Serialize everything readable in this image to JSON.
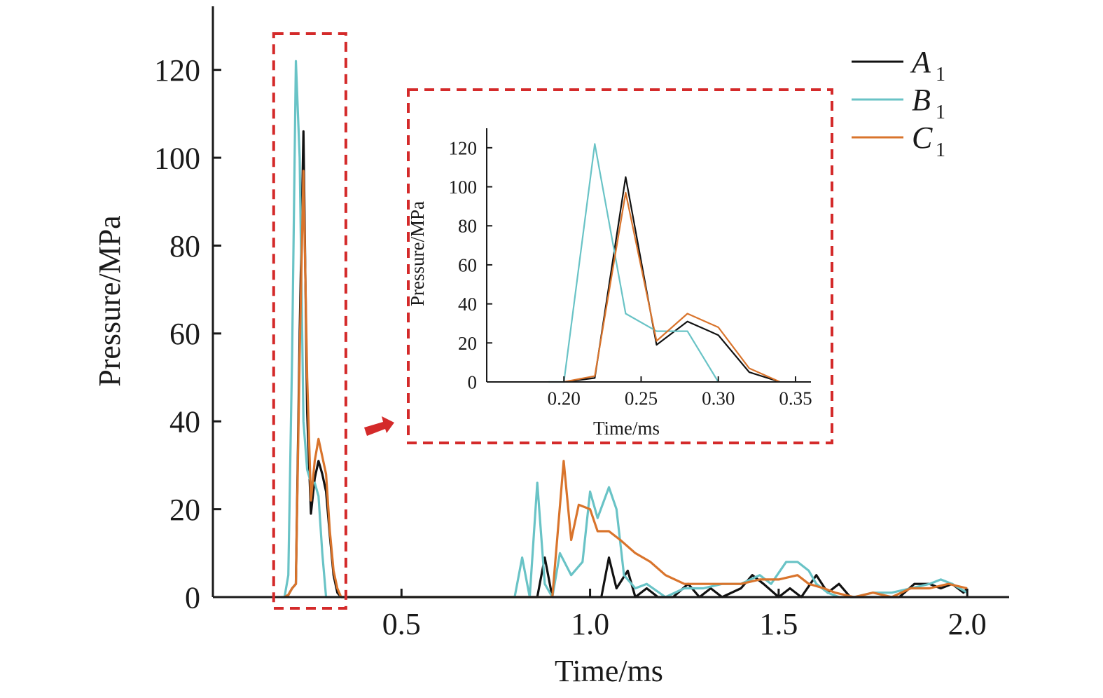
{
  "colors": {
    "A1": "#111111",
    "B1": "#69c3c6",
    "C1": "#d9742c",
    "callout": "#d42a2a",
    "axis": "#1a1a1a"
  },
  "chart_data": [
    {
      "id": "main",
      "type": "line",
      "xlabel": "Time/ms",
      "ylabel": "Pressure/MPa",
      "xlim": [
        0.0,
        2.1
      ],
      "ylim": [
        0,
        130
      ],
      "xticks": [
        0.5,
        1.0,
        1.5,
        2.0
      ],
      "xtick_labels": [
        "0.5",
        "1.0",
        "1.5",
        "2.0"
      ],
      "yticks": [
        0,
        20,
        40,
        60,
        80,
        100,
        120
      ],
      "ytick_labels": [
        "0",
        "20",
        "40",
        "60",
        "80",
        "100",
        "120"
      ],
      "grid": false,
      "legend": "top-right",
      "series": [
        {
          "name": "A",
          "subscript": "1",
          "color_key": "A1",
          "points": [
            [
              0.19,
              0
            ],
            [
              0.2,
              0.5
            ],
            [
              0.21,
              2
            ],
            [
              0.22,
              3
            ],
            [
              0.23,
              60
            ],
            [
              0.24,
              106
            ],
            [
              0.25,
              42
            ],
            [
              0.26,
              19
            ],
            [
              0.27,
              27
            ],
            [
              0.28,
              31
            ],
            [
              0.29,
              28
            ],
            [
              0.3,
              24
            ],
            [
              0.31,
              14
            ],
            [
              0.32,
              5
            ],
            [
              0.33,
              1
            ],
            [
              0.34,
              0
            ],
            [
              0.8,
              0
            ],
            [
              0.83,
              0
            ],
            [
              0.86,
              0
            ],
            [
              0.88,
              9
            ],
            [
              0.9,
              0
            ],
            [
              0.92,
              0
            ],
            [
              0.95,
              0
            ],
            [
              1.0,
              0
            ],
            [
              1.03,
              0
            ],
            [
              1.05,
              9
            ],
            [
              1.07,
              2
            ],
            [
              1.1,
              6
            ],
            [
              1.12,
              0
            ],
            [
              1.15,
              2
            ],
            [
              1.18,
              0
            ],
            [
              1.22,
              0
            ],
            [
              1.26,
              3
            ],
            [
              1.29,
              0
            ],
            [
              1.32,
              2
            ],
            [
              1.35,
              0
            ],
            [
              1.4,
              2
            ],
            [
              1.43,
              5
            ],
            [
              1.46,
              3
            ],
            [
              1.5,
              0
            ],
            [
              1.53,
              2
            ],
            [
              1.56,
              0
            ],
            [
              1.6,
              5
            ],
            [
              1.63,
              1
            ],
            [
              1.66,
              3
            ],
            [
              1.69,
              0
            ],
            [
              1.72,
              0
            ],
            [
              1.78,
              0
            ],
            [
              1.82,
              0
            ],
            [
              1.86,
              3
            ],
            [
              1.9,
              3
            ],
            [
              1.93,
              2
            ],
            [
              1.96,
              3
            ],
            [
              1.99,
              1
            ],
            [
              2.0,
              2
            ]
          ]
        },
        {
          "name": "B",
          "subscript": "1",
          "color_key": "B1",
          "points": [
            [
              0.18,
              0
            ],
            [
              0.19,
              0
            ],
            [
              0.2,
              5
            ],
            [
              0.21,
              55
            ],
            [
              0.22,
              122
            ],
            [
              0.23,
              100
            ],
            [
              0.24,
              40
            ],
            [
              0.25,
              29
            ],
            [
              0.26,
              26
            ],
            [
              0.27,
              26
            ],
            [
              0.28,
              23
            ],
            [
              0.29,
              10
            ],
            [
              0.3,
              0
            ],
            [
              0.8,
              0
            ],
            [
              0.82,
              9
            ],
            [
              0.84,
              0
            ],
            [
              0.86,
              26
            ],
            [
              0.88,
              3
            ],
            [
              0.9,
              0
            ],
            [
              0.92,
              10
            ],
            [
              0.95,
              5
            ],
            [
              0.98,
              8
            ],
            [
              1.0,
              24
            ],
            [
              1.02,
              18
            ],
            [
              1.05,
              25
            ],
            [
              1.07,
              20
            ],
            [
              1.09,
              5
            ],
            [
              1.12,
              2
            ],
            [
              1.15,
              3
            ],
            [
              1.2,
              0
            ],
            [
              1.25,
              2
            ],
            [
              1.3,
              2
            ],
            [
              1.35,
              3
            ],
            [
              1.4,
              3
            ],
            [
              1.45,
              5
            ],
            [
              1.48,
              3
            ],
            [
              1.52,
              8
            ],
            [
              1.55,
              8
            ],
            [
              1.58,
              6
            ],
            [
              1.6,
              3
            ],
            [
              1.63,
              1
            ],
            [
              1.66,
              0
            ],
            [
              1.7,
              0
            ],
            [
              1.75,
              1
            ],
            [
              1.8,
              1
            ],
            [
              1.85,
              2
            ],
            [
              1.9,
              3
            ],
            [
              1.93,
              4
            ],
            [
              1.96,
              3
            ],
            [
              2.0,
              1
            ]
          ]
        },
        {
          "name": "C",
          "subscript": "1",
          "color_key": "C1",
          "points": [
            [
              0.19,
              0
            ],
            [
              0.2,
              0.5
            ],
            [
              0.21,
              2
            ],
            [
              0.22,
              3
            ],
            [
              0.23,
              55
            ],
            [
              0.24,
              97
            ],
            [
              0.25,
              50
            ],
            [
              0.26,
              22
            ],
            [
              0.27,
              31
            ],
            [
              0.28,
              36
            ],
            [
              0.29,
              32
            ],
            [
              0.3,
              28
            ],
            [
              0.31,
              15
            ],
            [
              0.32,
              6
            ],
            [
              0.33,
              2
            ],
            [
              0.34,
              0
            ],
            [
              0.9,
              0
            ],
            [
              0.93,
              31
            ],
            [
              0.95,
              13
            ],
            [
              0.97,
              21
            ],
            [
              1.0,
              20
            ],
            [
              1.02,
              15
            ],
            [
              1.05,
              15
            ],
            [
              1.08,
              13
            ],
            [
              1.12,
              10
            ],
            [
              1.16,
              8
            ],
            [
              1.2,
              5
            ],
            [
              1.25,
              3
            ],
            [
              1.3,
              3
            ],
            [
              1.35,
              3
            ],
            [
              1.4,
              3
            ],
            [
              1.45,
              4
            ],
            [
              1.5,
              4
            ],
            [
              1.55,
              5
            ],
            [
              1.58,
              3
            ],
            [
              1.62,
              2
            ],
            [
              1.65,
              1
            ],
            [
              1.7,
              0
            ],
            [
              1.75,
              1
            ],
            [
              1.8,
              0
            ],
            [
              1.85,
              2
            ],
            [
              1.9,
              2
            ],
            [
              1.95,
              3
            ],
            [
              2.0,
              2
            ]
          ]
        }
      ]
    },
    {
      "id": "inset",
      "type": "line",
      "xlabel": "Time/ms",
      "ylabel": "Pressure/MPa",
      "xlim": [
        0.15,
        0.36
      ],
      "ylim": [
        0,
        130
      ],
      "xticks": [
        0.2,
        0.25,
        0.3,
        0.35
      ],
      "xtick_labels": [
        "0.20",
        "0.25",
        "0.30",
        "0.35"
      ],
      "yticks": [
        0,
        20,
        40,
        60,
        80,
        100,
        120
      ],
      "ytick_labels": [
        "0",
        "20",
        "40",
        "60",
        "80",
        "100",
        "120"
      ],
      "grid": false,
      "series": [
        {
          "name": "A",
          "subscript": "1",
          "color_key": "A1",
          "points": [
            [
              0.2,
              0
            ],
            [
              0.22,
              2
            ],
            [
              0.24,
              105
            ],
            [
              0.26,
              19
            ],
            [
              0.28,
              31
            ],
            [
              0.3,
              24
            ],
            [
              0.32,
              5
            ],
            [
              0.34,
              0
            ]
          ]
        },
        {
          "name": "B",
          "subscript": "1",
          "color_key": "B1",
          "points": [
            [
              0.19,
              0
            ],
            [
              0.2,
              0
            ],
            [
              0.22,
              122
            ],
            [
              0.24,
              35
            ],
            [
              0.26,
              26
            ],
            [
              0.28,
              26
            ],
            [
              0.3,
              0
            ]
          ]
        },
        {
          "name": "C",
          "subscript": "1",
          "color_key": "C1",
          "points": [
            [
              0.2,
              0
            ],
            [
              0.22,
              3
            ],
            [
              0.24,
              97
            ],
            [
              0.26,
              21
            ],
            [
              0.28,
              35
            ],
            [
              0.3,
              28
            ],
            [
              0.32,
              7
            ],
            [
              0.34,
              0
            ]
          ]
        }
      ]
    }
  ]
}
